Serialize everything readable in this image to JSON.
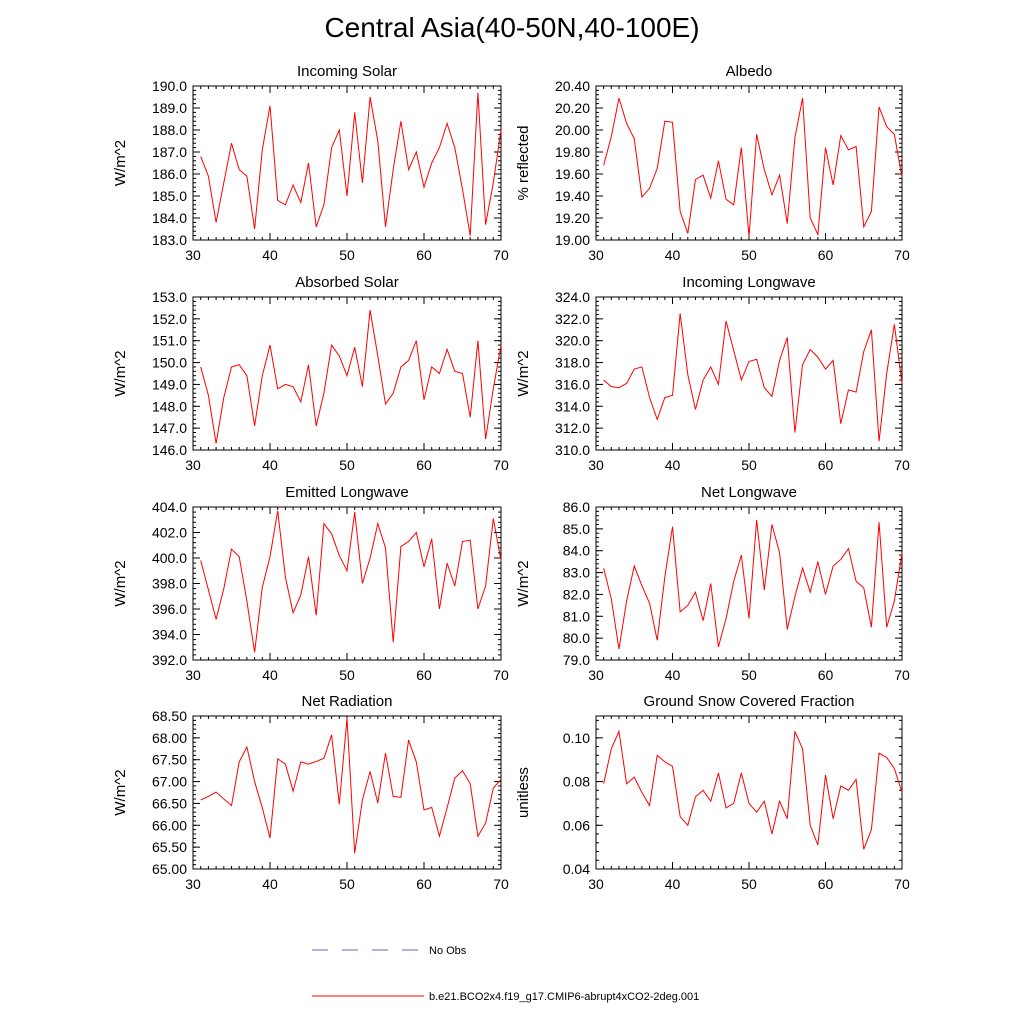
{
  "title": "Central Asia(40-50N,40-100E)",
  "legend": {
    "obs_label": "No Obs",
    "obs_color": "#5a6ab4",
    "model_label": "b.e21.BCO2x4.f19_g17.CMIP6-abrupt4xCO2-2deg.001",
    "model_color": "#ff0000"
  },
  "chart_data": [
    {
      "type": "line",
      "title": "Incoming Solar",
      "xlabel": "",
      "ylabel": "W/m^2",
      "xlim": [
        30,
        70
      ],
      "ylim": [
        183.0,
        190.0
      ],
      "xticks": [
        30,
        40,
        50,
        60,
        70
      ],
      "yticks": [
        183.0,
        184.0,
        185.0,
        186.0,
        187.0,
        188.0,
        189.0,
        190.0
      ],
      "ydecimals": 1,
      "x": [
        31,
        32,
        33,
        34,
        35,
        36,
        37,
        38,
        39,
        40,
        41,
        42,
        43,
        44,
        45,
        46,
        47,
        48,
        49,
        50,
        51,
        52,
        53,
        54,
        55,
        56,
        57,
        58,
        59,
        60,
        61,
        62,
        63,
        64,
        65,
        66,
        67,
        68,
        69,
        70
      ],
      "series": [
        {
          "name": "b.e21.BCO2x4.f19_g17.CMIP6-abrupt4xCO2-2deg.001",
          "values": [
            186.8,
            185.9,
            183.8,
            185.6,
            187.4,
            186.2,
            185.9,
            183.5,
            187.1,
            189.1,
            184.8,
            184.6,
            185.5,
            184.7,
            186.5,
            183.6,
            184.6,
            187.2,
            188.0,
            185.0,
            188.8,
            185.6,
            189.5,
            187.5,
            183.6,
            186.2,
            188.4,
            186.2,
            187.0,
            185.4,
            186.5,
            187.2,
            188.3,
            187.2,
            185.3,
            183.2,
            189.7,
            183.7,
            185.6,
            188.0
          ]
        }
      ]
    },
    {
      "type": "line",
      "title": "Albedo",
      "xlabel": "",
      "ylabel": "% reflected",
      "xlim": [
        30,
        70
      ],
      "ylim": [
        19.0,
        20.4
      ],
      "xticks": [
        30,
        40,
        50,
        60,
        70
      ],
      "yticks": [
        19.0,
        19.2,
        19.4,
        19.6,
        19.8,
        20.0,
        20.2,
        20.4
      ],
      "ydecimals": 2,
      "x": [
        31,
        32,
        33,
        34,
        35,
        36,
        37,
        38,
        39,
        40,
        41,
        42,
        43,
        44,
        45,
        46,
        47,
        48,
        49,
        50,
        51,
        52,
        53,
        54,
        55,
        56,
        57,
        58,
        59,
        60,
        61,
        62,
        63,
        64,
        65,
        66,
        67,
        68,
        69,
        70
      ],
      "series": [
        {
          "name": "b.e21.BCO2x4.f19_g17.CMIP6-abrupt4xCO2-2deg.001",
          "values": [
            19.68,
            19.94,
            20.29,
            20.06,
            19.92,
            19.39,
            19.47,
            19.65,
            20.08,
            20.07,
            19.26,
            19.06,
            19.55,
            19.59,
            19.38,
            19.72,
            19.37,
            19.32,
            19.84,
            19.03,
            19.96,
            19.64,
            19.41,
            19.59,
            19.15,
            19.93,
            20.29,
            19.2,
            19.05,
            19.84,
            19.5,
            19.95,
            19.82,
            19.85,
            19.12,
            19.26,
            20.21,
            20.03,
            19.96,
            19.57
          ]
        }
      ]
    },
    {
      "type": "line",
      "title": "Absorbed Solar",
      "xlabel": "",
      "ylabel": "W/m^2",
      "xlim": [
        30,
        70
      ],
      "ylim": [
        146.0,
        153.0
      ],
      "xticks": [
        30,
        40,
        50,
        60,
        70
      ],
      "yticks": [
        146.0,
        147.0,
        148.0,
        149.0,
        150.0,
        151.0,
        152.0,
        153.0
      ],
      "ydecimals": 1,
      "x": [
        31,
        32,
        33,
        34,
        35,
        36,
        37,
        38,
        39,
        40,
        41,
        42,
        43,
        44,
        45,
        46,
        47,
        48,
        49,
        50,
        51,
        52,
        53,
        54,
        55,
        56,
        57,
        58,
        59,
        60,
        61,
        62,
        63,
        64,
        65,
        66,
        67,
        68,
        69,
        70
      ],
      "series": [
        {
          "name": "b.e21.BCO2x4.f19_g17.CMIP6-abrupt4xCO2-2deg.001",
          "values": [
            149.8,
            148.5,
            146.3,
            148.4,
            149.8,
            149.9,
            149.4,
            147.1,
            149.4,
            150.8,
            148.8,
            149.0,
            148.9,
            148.2,
            149.9,
            147.1,
            148.6,
            150.8,
            150.3,
            149.4,
            150.7,
            148.9,
            152.4,
            150.3,
            148.1,
            148.6,
            149.8,
            150.1,
            151.0,
            148.3,
            149.8,
            149.5,
            150.6,
            149.6,
            149.5,
            147.5,
            151.0,
            146.5,
            148.8,
            150.8
          ]
        }
      ]
    },
    {
      "type": "line",
      "title": "Incoming Longwave",
      "xlabel": "",
      "ylabel": "W/m^2",
      "xlim": [
        30,
        70
      ],
      "ylim": [
        310.0,
        324.0
      ],
      "xticks": [
        30,
        40,
        50,
        60,
        70
      ],
      "yticks": [
        310.0,
        312.0,
        314.0,
        316.0,
        318.0,
        320.0,
        322.0,
        324.0
      ],
      "ydecimals": 1,
      "x": [
        31,
        32,
        33,
        34,
        35,
        36,
        37,
        38,
        39,
        40,
        41,
        42,
        43,
        44,
        45,
        46,
        47,
        48,
        49,
        50,
        51,
        52,
        53,
        54,
        55,
        56,
        57,
        58,
        59,
        60,
        61,
        62,
        63,
        64,
        65,
        66,
        67,
        68,
        69,
        70
      ],
      "series": [
        {
          "name": "b.e21.BCO2x4.f19_g17.CMIP6-abrupt4xCO2-2deg.001",
          "values": [
            316.4,
            315.8,
            315.7,
            316.1,
            317.4,
            317.6,
            314.8,
            312.8,
            314.8,
            315.0,
            322.5,
            316.9,
            313.7,
            316.4,
            317.6,
            316.0,
            321.8,
            319.1,
            316.4,
            318.1,
            318.3,
            315.7,
            314.9,
            318.2,
            320.3,
            311.6,
            317.8,
            319.2,
            318.5,
            317.4,
            318.2,
            312.4,
            315.5,
            315.3,
            319.0,
            321.0,
            310.8,
            317.0,
            321.5,
            316.1
          ]
        }
      ]
    },
    {
      "type": "line",
      "title": "Emitted Longwave",
      "xlabel": "",
      "ylabel": "W/m^2",
      "xlim": [
        30,
        70
      ],
      "ylim": [
        392.0,
        404.0
      ],
      "xticks": [
        30,
        40,
        50,
        60,
        70
      ],
      "yticks": [
        392.0,
        394.0,
        396.0,
        398.0,
        400.0,
        402.0,
        404.0
      ],
      "ydecimals": 1,
      "x": [
        31,
        32,
        33,
        34,
        35,
        36,
        37,
        38,
        39,
        40,
        41,
        42,
        43,
        44,
        45,
        46,
        47,
        48,
        49,
        50,
        51,
        52,
        53,
        54,
        55,
        56,
        57,
        58,
        59,
        60,
        61,
        62,
        63,
        64,
        65,
        66,
        67,
        68,
        69,
        70
      ],
      "series": [
        {
          "name": "b.e21.BCO2x4.f19_g17.CMIP6-abrupt4xCO2-2deg.001",
          "values": [
            399.8,
            397.5,
            395.2,
            397.6,
            400.7,
            400.1,
            396.6,
            392.6,
            397.7,
            400.1,
            403.7,
            398.5,
            395.7,
            397.1,
            400.1,
            395.5,
            402.7,
            401.9,
            400.2,
            399.0,
            403.6,
            398.0,
            400.0,
            402.7,
            400.8,
            393.4,
            400.9,
            401.3,
            402.0,
            399.3,
            401.5,
            396.0,
            399.6,
            397.8,
            401.3,
            401.4,
            396.0,
            397.8,
            403.1,
            399.8
          ]
        }
      ]
    },
    {
      "type": "line",
      "title": "Net Longwave",
      "xlabel": "",
      "ylabel": "W/m^2",
      "xlim": [
        30,
        70
      ],
      "ylim": [
        79.0,
        86.0
      ],
      "xticks": [
        30,
        40,
        50,
        60,
        70
      ],
      "yticks": [
        79.0,
        80.0,
        81.0,
        82.0,
        83.0,
        84.0,
        85.0,
        86.0
      ],
      "ydecimals": 1,
      "x": [
        31,
        32,
        33,
        34,
        35,
        36,
        37,
        38,
        39,
        40,
        41,
        42,
        43,
        44,
        45,
        46,
        47,
        48,
        49,
        50,
        51,
        52,
        53,
        54,
        55,
        56,
        57,
        58,
        59,
        60,
        61,
        62,
        63,
        64,
        65,
        66,
        67,
        68,
        69,
        70
      ],
      "series": [
        {
          "name": "b.e21.BCO2x4.f19_g17.CMIP6-abrupt4xCO2-2deg.001",
          "values": [
            83.2,
            81.8,
            79.5,
            81.7,
            83.3,
            82.4,
            81.6,
            79.9,
            82.8,
            85.1,
            81.2,
            81.5,
            82.1,
            80.8,
            82.5,
            79.6,
            80.9,
            82.6,
            83.8,
            80.9,
            85.4,
            82.2,
            85.2,
            83.9,
            80.4,
            81.9,
            83.2,
            82.1,
            83.5,
            82.0,
            83.3,
            83.6,
            84.1,
            82.6,
            82.3,
            80.5,
            85.3,
            80.5,
            81.7,
            83.9
          ]
        }
      ]
    },
    {
      "type": "line",
      "title": "Net Radiation",
      "xlabel": "",
      "ylabel": "W/m^2",
      "xlim": [
        30,
        70
      ],
      "ylim": [
        65.0,
        68.5
      ],
      "xticks": [
        30,
        40,
        50,
        60,
        70
      ],
      "yticks": [
        65.0,
        65.5,
        66.0,
        66.5,
        67.0,
        67.5,
        68.0,
        68.5
      ],
      "ydecimals": 2,
      "x": [
        31,
        32,
        33,
        34,
        35,
        36,
        37,
        38,
        39,
        40,
        41,
        42,
        43,
        44,
        45,
        46,
        47,
        48,
        49,
        50,
        51,
        52,
        53,
        54,
        55,
        56,
        57,
        58,
        59,
        60,
        61,
        62,
        63,
        64,
        65,
        66,
        67,
        68,
        69,
        70
      ],
      "series": [
        {
          "name": "b.e21.BCO2x4.f19_g17.CMIP6-abrupt4xCO2-2deg.001",
          "values": [
            66.58,
            66.66,
            66.76,
            66.6,
            66.45,
            67.45,
            67.79,
            67.0,
            66.4,
            65.71,
            67.52,
            67.4,
            66.78,
            67.45,
            67.4,
            67.46,
            67.53,
            68.07,
            66.48,
            68.45,
            65.36,
            66.58,
            67.23,
            66.51,
            67.65,
            66.66,
            66.64,
            67.95,
            67.45,
            66.35,
            66.41,
            65.75,
            66.4,
            67.08,
            67.25,
            66.95,
            65.75,
            66.05,
            66.85,
            67.05
          ]
        }
      ]
    },
    {
      "type": "line",
      "title": "Ground Snow Covered Fraction",
      "xlabel": "",
      "ylabel": "unitless",
      "xlim": [
        30,
        70
      ],
      "ylim": [
        0.04,
        0.11
      ],
      "xticks": [
        30,
        40,
        50,
        60,
        70
      ],
      "yticks": [
        0.04,
        0.06,
        0.08,
        0.1
      ],
      "ydecimals": 2,
      "x": [
        31,
        32,
        33,
        34,
        35,
        36,
        37,
        38,
        39,
        40,
        41,
        42,
        43,
        44,
        45,
        46,
        47,
        48,
        49,
        50,
        51,
        52,
        53,
        54,
        55,
        56,
        57,
        58,
        59,
        60,
        61,
        62,
        63,
        64,
        65,
        66,
        67,
        68,
        69,
        70
      ],
      "series": [
        {
          "name": "b.e21.BCO2x4.f19_g17.CMIP6-abrupt4xCO2-2deg.001",
          "values": [
            0.079,
            0.095,
            0.103,
            0.079,
            0.082,
            0.075,
            0.069,
            0.092,
            0.089,
            0.087,
            0.064,
            0.06,
            0.073,
            0.076,
            0.071,
            0.084,
            0.068,
            0.07,
            0.084,
            0.07,
            0.066,
            0.071,
            0.056,
            0.071,
            0.063,
            0.103,
            0.095,
            0.06,
            0.051,
            0.083,
            0.063,
            0.078,
            0.076,
            0.081,
            0.049,
            0.058,
            0.093,
            0.091,
            0.086,
            0.075
          ]
        }
      ]
    }
  ]
}
